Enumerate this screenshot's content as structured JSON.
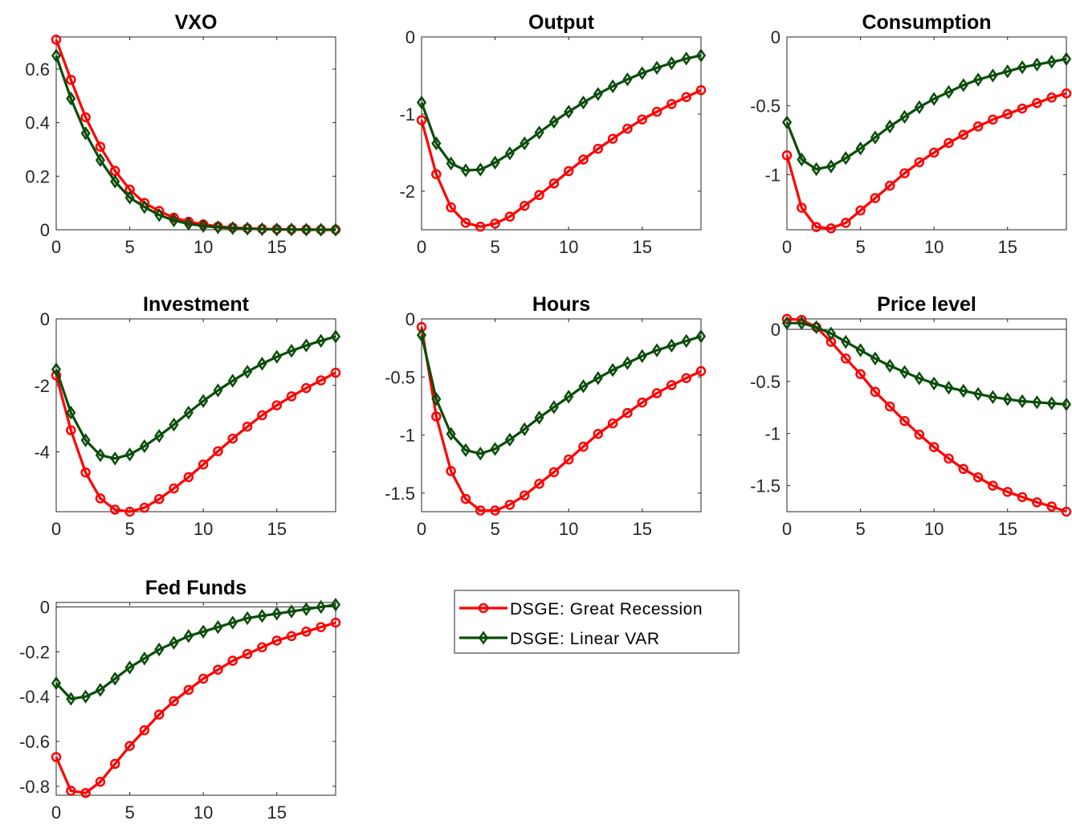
{
  "chart_data": [
    {
      "type": "line",
      "title": "VXO",
      "xlim": [
        0,
        19
      ],
      "ylim": [
        0,
        0.72
      ],
      "xticks": [
        0,
        5,
        10,
        15
      ],
      "yticks": [
        0,
        0.2,
        0.4,
        0.6
      ],
      "xticklabels": [
        "0",
        "5",
        "10",
        "15"
      ],
      "yticklabels": [
        "0",
        "0.2",
        "0.4",
        "0.6"
      ],
      "zero_line": false,
      "x": [
        0,
        1,
        2,
        3,
        4,
        5,
        6,
        7,
        8,
        9,
        10,
        11,
        12,
        13,
        14,
        15,
        16,
        17,
        18,
        19
      ],
      "series": [
        {
          "color": "#ff0000",
          "marker": "circle",
          "values": [
            0.71,
            0.56,
            0.42,
            0.31,
            0.22,
            0.15,
            0.1,
            0.07,
            0.045,
            0.03,
            0.02,
            0.012,
            0.008,
            0.005,
            0.003,
            0.002,
            0.001,
            0.001,
            0.0,
            0.0
          ]
        },
        {
          "color": "#0a4d0a",
          "marker": "diamond",
          "values": [
            0.65,
            0.49,
            0.36,
            0.26,
            0.18,
            0.12,
            0.085,
            0.055,
            0.035,
            0.022,
            0.014,
            0.009,
            0.006,
            0.004,
            0.002,
            0.001,
            0.001,
            0.0,
            0.0,
            0.0
          ]
        }
      ]
    },
    {
      "type": "line",
      "title": "Output",
      "xlim": [
        0,
        19
      ],
      "ylim": [
        -2.5,
        0
      ],
      "xticks": [
        0,
        5,
        10,
        15
      ],
      "yticks": [
        -2,
        -1,
        0
      ],
      "xticklabels": [
        "0",
        "5",
        "10",
        "15"
      ],
      "yticklabels": [
        "-2",
        "-1",
        "0"
      ],
      "zero_line": false,
      "x": [
        0,
        1,
        2,
        3,
        4,
        5,
        6,
        7,
        8,
        9,
        10,
        11,
        12,
        13,
        14,
        15,
        16,
        17,
        18,
        19
      ],
      "series": [
        {
          "color": "#ff0000",
          "marker": "circle",
          "values": [
            -1.08,
            -1.78,
            -2.21,
            -2.41,
            -2.46,
            -2.42,
            -2.33,
            -2.19,
            -2.05,
            -1.9,
            -1.74,
            -1.59,
            -1.45,
            -1.32,
            -1.19,
            -1.07,
            -0.97,
            -0.87,
            -0.78,
            -0.69
          ]
        },
        {
          "color": "#0a4d0a",
          "marker": "diamond",
          "values": [
            -0.85,
            -1.38,
            -1.64,
            -1.73,
            -1.72,
            -1.63,
            -1.51,
            -1.38,
            -1.24,
            -1.1,
            -0.97,
            -0.85,
            -0.74,
            -0.64,
            -0.55,
            -0.47,
            -0.4,
            -0.34,
            -0.28,
            -0.24
          ]
        }
      ]
    },
    {
      "type": "line",
      "title": "Consumption",
      "xlim": [
        0,
        19
      ],
      "ylim": [
        -1.4,
        0
      ],
      "xticks": [
        0,
        5,
        10,
        15
      ],
      "yticks": [
        -1,
        -0.5,
        0
      ],
      "xticklabels": [
        "0",
        "5",
        "10",
        "15"
      ],
      "yticklabels": [
        "-1",
        "-0.5",
        "0"
      ],
      "zero_line": false,
      "x": [
        0,
        1,
        2,
        3,
        4,
        5,
        6,
        7,
        8,
        9,
        10,
        11,
        12,
        13,
        14,
        15,
        16,
        17,
        18,
        19
      ],
      "series": [
        {
          "color": "#ff0000",
          "marker": "circle",
          "values": [
            -0.86,
            -1.24,
            -1.38,
            -1.39,
            -1.35,
            -1.26,
            -1.17,
            -1.08,
            -0.99,
            -0.91,
            -0.84,
            -0.77,
            -0.71,
            -0.65,
            -0.6,
            -0.56,
            -0.52,
            -0.48,
            -0.44,
            -0.41
          ]
        },
        {
          "color": "#0a4d0a",
          "marker": "diamond",
          "values": [
            -0.62,
            -0.89,
            -0.96,
            -0.94,
            -0.88,
            -0.81,
            -0.73,
            -0.65,
            -0.58,
            -0.51,
            -0.45,
            -0.4,
            -0.35,
            -0.31,
            -0.28,
            -0.25,
            -0.22,
            -0.2,
            -0.18,
            -0.16
          ]
        }
      ]
    },
    {
      "type": "line",
      "title": "Investment",
      "xlim": [
        0,
        19
      ],
      "ylim": [
        -5.8,
        0
      ],
      "xticks": [
        0,
        5,
        10,
        15
      ],
      "yticks": [
        -4,
        -2,
        0
      ],
      "xticklabels": [
        "0",
        "5",
        "10",
        "15"
      ],
      "yticklabels": [
        "-4",
        "-2",
        "0"
      ],
      "zero_line": false,
      "x": [
        0,
        1,
        2,
        3,
        4,
        5,
        6,
        7,
        8,
        9,
        10,
        11,
        12,
        13,
        14,
        15,
        16,
        17,
        18,
        19
      ],
      "series": [
        {
          "color": "#ff0000",
          "marker": "circle",
          "values": [
            -1.7,
            -3.35,
            -4.62,
            -5.4,
            -5.74,
            -5.8,
            -5.68,
            -5.42,
            -5.1,
            -4.76,
            -4.38,
            -3.98,
            -3.6,
            -3.24,
            -2.9,
            -2.6,
            -2.33,
            -2.08,
            -1.85,
            -1.62
          ]
        },
        {
          "color": "#0a4d0a",
          "marker": "diamond",
          "values": [
            -1.52,
            -2.82,
            -3.65,
            -4.1,
            -4.2,
            -4.08,
            -3.83,
            -3.52,
            -3.18,
            -2.82,
            -2.47,
            -2.15,
            -1.86,
            -1.59,
            -1.35,
            -1.14,
            -0.96,
            -0.8,
            -0.66,
            -0.53
          ]
        }
      ]
    },
    {
      "type": "line",
      "title": "Hours",
      "xlim": [
        0,
        19
      ],
      "ylim": [
        -1.66,
        0
      ],
      "xticks": [
        0,
        5,
        10,
        15
      ],
      "yticks": [
        -1.5,
        -1,
        -0.5,
        0
      ],
      "xticklabels": [
        "0",
        "5",
        "10",
        "15"
      ],
      "yticklabels": [
        "-1.5",
        "-1",
        "-0.5",
        "0"
      ],
      "zero_line": false,
      "x": [
        0,
        1,
        2,
        3,
        4,
        5,
        6,
        7,
        8,
        9,
        10,
        11,
        12,
        13,
        14,
        15,
        16,
        17,
        18,
        19
      ],
      "series": [
        {
          "color": "#ff0000",
          "marker": "circle",
          "values": [
            -0.07,
            -0.84,
            -1.31,
            -1.55,
            -1.65,
            -1.65,
            -1.6,
            -1.52,
            -1.42,
            -1.32,
            -1.21,
            -1.1,
            -0.99,
            -0.9,
            -0.81,
            -0.72,
            -0.64,
            -0.57,
            -0.51,
            -0.45
          ]
        },
        {
          "color": "#0a4d0a",
          "marker": "diamond",
          "values": [
            -0.14,
            -0.69,
            -0.99,
            -1.13,
            -1.16,
            -1.12,
            -1.04,
            -0.95,
            -0.85,
            -0.76,
            -0.67,
            -0.58,
            -0.51,
            -0.44,
            -0.38,
            -0.32,
            -0.27,
            -0.23,
            -0.19,
            -0.15
          ]
        }
      ]
    },
    {
      "type": "line",
      "title": "Price level",
      "xlim": [
        0,
        19
      ],
      "ylim": [
        -1.75,
        0.1
      ],
      "xticks": [
        0,
        5,
        10,
        15
      ],
      "yticks": [
        -1.5,
        -1,
        -0.5,
        0
      ],
      "xticklabels": [
        "0",
        "5",
        "10",
        "15"
      ],
      "yticklabels": [
        "-1.5",
        "-1",
        "-0.5",
        "0"
      ],
      "zero_line": true,
      "x": [
        0,
        1,
        2,
        3,
        4,
        5,
        6,
        7,
        8,
        9,
        10,
        11,
        12,
        13,
        14,
        15,
        16,
        17,
        18,
        19
      ],
      "series": [
        {
          "color": "#ff0000",
          "marker": "circle",
          "values": [
            0.1,
            0.09,
            0.02,
            -0.12,
            -0.28,
            -0.43,
            -0.6,
            -0.74,
            -0.88,
            -1.01,
            -1.13,
            -1.24,
            -1.34,
            -1.42,
            -1.5,
            -1.56,
            -1.61,
            -1.66,
            -1.7,
            -1.75
          ]
        },
        {
          "color": "#0a4d0a",
          "marker": "diamond",
          "values": [
            0.06,
            0.06,
            0.02,
            -0.04,
            -0.12,
            -0.2,
            -0.28,
            -0.35,
            -0.41,
            -0.47,
            -0.52,
            -0.56,
            -0.59,
            -0.62,
            -0.65,
            -0.67,
            -0.69,
            -0.7,
            -0.71,
            -0.72
          ]
        }
      ]
    },
    {
      "type": "line",
      "title": "Fed Funds",
      "xlim": [
        0,
        19
      ],
      "ylim": [
        -0.84,
        0.02
      ],
      "xticks": [
        0,
        5,
        10,
        15
      ],
      "yticks": [
        -0.8,
        -0.6,
        -0.4,
        -0.2,
        0
      ],
      "xticklabels": [
        "0",
        "5",
        "10",
        "15"
      ],
      "yticklabels": [
        "-0.8",
        "-0.6",
        "-0.4",
        "-0.2",
        "0"
      ],
      "zero_line": true,
      "x": [
        0,
        1,
        2,
        3,
        4,
        5,
        6,
        7,
        8,
        9,
        10,
        11,
        12,
        13,
        14,
        15,
        16,
        17,
        18,
        19
      ],
      "series": [
        {
          "color": "#ff0000",
          "marker": "circle",
          "values": [
            -0.67,
            -0.82,
            -0.83,
            -0.78,
            -0.7,
            -0.62,
            -0.55,
            -0.48,
            -0.42,
            -0.37,
            -0.32,
            -0.28,
            -0.24,
            -0.21,
            -0.18,
            -0.15,
            -0.13,
            -0.11,
            -0.09,
            -0.07
          ]
        },
        {
          "color": "#0a4d0a",
          "marker": "diamond",
          "values": [
            -0.34,
            -0.41,
            -0.4,
            -0.37,
            -0.32,
            -0.27,
            -0.23,
            -0.19,
            -0.16,
            -0.13,
            -0.11,
            -0.09,
            -0.07,
            -0.05,
            -0.04,
            -0.03,
            -0.02,
            -0.01,
            0.0,
            0.01
          ]
        }
      ]
    }
  ],
  "legend": {
    "placement": "below-middle",
    "entries": [
      {
        "label": "DSGE: Great Recession",
        "color": "#ff0000",
        "marker": "circle"
      },
      {
        "label": "DSGE: Linear VAR",
        "color": "#0a4d0a",
        "marker": "diamond"
      }
    ]
  }
}
